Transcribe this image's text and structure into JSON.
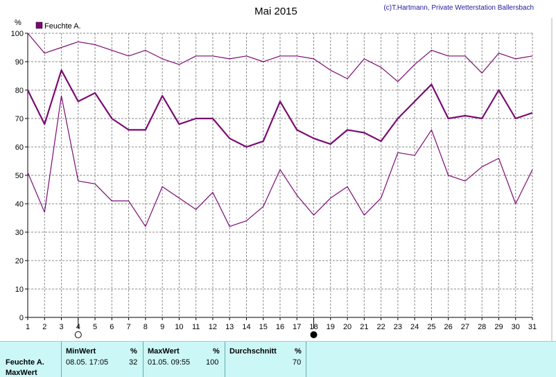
{
  "chart_data": {
    "type": "line",
    "title": "Mai 2015",
    "copyright": "(c)T.Hartmann, Private Wetterstation Ballersbach",
    "ylabel": "%",
    "ylim": [
      0,
      100
    ],
    "yticks": [
      0,
      10,
      20,
      30,
      40,
      50,
      60,
      70,
      80,
      90,
      100
    ],
    "x": [
      1,
      2,
      3,
      4,
      5,
      6,
      7,
      8,
      9,
      10,
      11,
      12,
      13,
      14,
      15,
      16,
      17,
      18,
      19,
      20,
      21,
      22,
      23,
      24,
      25,
      26,
      27,
      28,
      29,
      30,
      31
    ],
    "grid": true,
    "legend_position": "top-left",
    "legend": [
      "Feuchte A."
    ],
    "moon_markers": [
      {
        "day": 4,
        "phase": "full-moon"
      },
      {
        "day": 18,
        "phase": "new-moon"
      }
    ],
    "series": [
      {
        "name": "Feuchte A.",
        "kind": "max",
        "values": [
          100,
          93,
          95,
          97,
          96,
          94,
          92,
          94,
          91,
          89,
          92,
          92,
          91,
          92,
          90,
          92,
          92,
          91,
          87,
          84,
          91,
          88,
          83,
          89,
          94,
          92,
          92,
          86,
          93,
          91,
          92
        ]
      },
      {
        "name": "Feuchte A.",
        "kind": "mean",
        "values": [
          80,
          68,
          87,
          76,
          79,
          70,
          66,
          66,
          78,
          68,
          70,
          70,
          63,
          60,
          62,
          76,
          66,
          63,
          61,
          66,
          65,
          62,
          70,
          76,
          82,
          70,
          71,
          70,
          80,
          70,
          72
        ]
      },
      {
        "name": "Feuchte A.",
        "kind": "min",
        "values": [
          51,
          37,
          78,
          48,
          47,
          41,
          41,
          32,
          46,
          42,
          38,
          44,
          32,
          34,
          39,
          52,
          43,
          36,
          42,
          46,
          36,
          42,
          58,
          57,
          66,
          50,
          48,
          53,
          56,
          40,
          52
        ]
      }
    ]
  },
  "colors": {
    "series": "#7a0a72",
    "grid": "#8a8a8a",
    "panel": "#ccf7f7",
    "copyright": "#1a1aa0"
  },
  "stats": {
    "row_label": "Feuchte A.",
    "row_sub": "MaxWert",
    "min_header": "MinWert",
    "min_unit": "%",
    "min_time": "08.05.  17:05",
    "min_value": "32",
    "max_header": "MaxWert",
    "max_unit": "%",
    "max_time": "01.05.  09:55",
    "max_value": "100",
    "avg_header": "Durchschnitt",
    "avg_unit": "%",
    "avg_value": "70"
  }
}
